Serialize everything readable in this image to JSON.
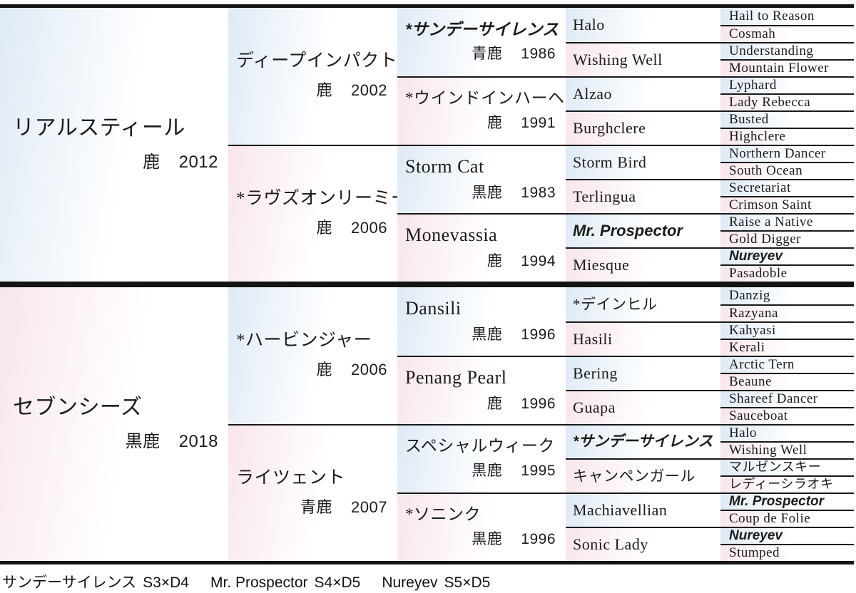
{
  "colors": {
    "sire_tint": "#dfeaf6",
    "dam_tint": "#f8e6ed",
    "rule_line": "#1a1a1a",
    "border": "#141414"
  },
  "pedigree": {
    "gen1": [
      {
        "name": "リアルスティール",
        "coat": "鹿",
        "year": "2012",
        "sex": "male",
        "script": "ja"
      },
      {
        "name": "セブンシーズ",
        "coat": "黒鹿",
        "year": "2018",
        "sex": "female",
        "script": "ja"
      }
    ],
    "gen2": [
      {
        "name": "ディープインパクト",
        "coat": "鹿",
        "year": "2002",
        "sex": "male",
        "script": "ja"
      },
      {
        "name": "*ラヴズオンリーミー",
        "coat": "鹿",
        "year": "2006",
        "sex": "female",
        "script": "ja"
      },
      {
        "name": "*ハービンジャー",
        "coat": "鹿",
        "year": "2006",
        "sex": "male",
        "script": "ja"
      },
      {
        "name": "ライツェント",
        "coat": "青鹿",
        "year": "2007",
        "sex": "female",
        "script": "ja"
      }
    ],
    "gen3": [
      {
        "name": "*サンデーサイレンス",
        "coat": "青鹿",
        "year": "1986",
        "sex": "male",
        "script": "ja",
        "emph": true
      },
      {
        "name": "*ウインドインハーヘア",
        "coat": "鹿",
        "year": "1991",
        "sex": "female",
        "script": "ja"
      },
      {
        "name": "Storm Cat",
        "coat": "黒鹿",
        "year": "1983",
        "sex": "male",
        "script": "en"
      },
      {
        "name": "Monevassia",
        "coat": "鹿",
        "year": "1994",
        "sex": "female",
        "script": "en"
      },
      {
        "name": "Dansili",
        "coat": "黒鹿",
        "year": "1996",
        "sex": "male",
        "script": "en"
      },
      {
        "name": "Penang Pearl",
        "coat": "鹿",
        "year": "1996",
        "sex": "female",
        "script": "en"
      },
      {
        "name": "スペシャルウィーク",
        "coat": "黒鹿",
        "year": "1995",
        "sex": "male",
        "script": "ja"
      },
      {
        "name": "*ソニンク",
        "coat": "黒鹿",
        "year": "1996",
        "sex": "female",
        "script": "ja"
      }
    ],
    "gen4": [
      {
        "name": "Halo",
        "sex": "male",
        "script": "en"
      },
      {
        "name": "Wishing Well",
        "sex": "female",
        "script": "en"
      },
      {
        "name": "Alzao",
        "sex": "male",
        "script": "en"
      },
      {
        "name": "Burghclere",
        "sex": "female",
        "script": "en"
      },
      {
        "name": "Storm Bird",
        "sex": "male",
        "script": "en"
      },
      {
        "name": "Terlingua",
        "sex": "female",
        "script": "en"
      },
      {
        "name": "Mr. Prospector",
        "sex": "male",
        "script": "en",
        "emph": true
      },
      {
        "name": "Miesque",
        "sex": "female",
        "script": "en"
      },
      {
        "name": "*デインヒル",
        "sex": "male",
        "script": "ja"
      },
      {
        "name": "Hasili",
        "sex": "female",
        "script": "en"
      },
      {
        "name": "Bering",
        "sex": "male",
        "script": "en"
      },
      {
        "name": "Guapa",
        "sex": "female",
        "script": "en"
      },
      {
        "name": "*サンデーサイレンス",
        "sex": "male",
        "script": "ja",
        "emph": true
      },
      {
        "name": "キャンペンガール",
        "sex": "female",
        "script": "ja"
      },
      {
        "name": "Machiavellian",
        "sex": "male",
        "script": "en"
      },
      {
        "name": "Sonic Lady",
        "sex": "female",
        "script": "en"
      }
    ],
    "gen5": [
      {
        "name": "Hail to Reason",
        "sex": "male",
        "script": "en"
      },
      {
        "name": "Cosmah",
        "sex": "female",
        "script": "en"
      },
      {
        "name": "Understanding",
        "sex": "male",
        "script": "en"
      },
      {
        "name": "Mountain Flower",
        "sex": "female",
        "script": "en"
      },
      {
        "name": "Lyphard",
        "sex": "male",
        "script": "en"
      },
      {
        "name": "Lady Rebecca",
        "sex": "female",
        "script": "en"
      },
      {
        "name": "Busted",
        "sex": "male",
        "script": "en"
      },
      {
        "name": "Highclere",
        "sex": "female",
        "script": "en"
      },
      {
        "name": "Northern Dancer",
        "sex": "male",
        "script": "en"
      },
      {
        "name": "South Ocean",
        "sex": "female",
        "script": "en"
      },
      {
        "name": "Secretariat",
        "sex": "male",
        "script": "en"
      },
      {
        "name": "Crimson Saint",
        "sex": "female",
        "script": "en"
      },
      {
        "name": "Raise a Native",
        "sex": "male",
        "script": "en"
      },
      {
        "name": "Gold Digger",
        "sex": "female",
        "script": "en"
      },
      {
        "name": "Nureyev",
        "sex": "male",
        "script": "en",
        "emph": true
      },
      {
        "name": "Pasadoble",
        "sex": "female",
        "script": "en"
      },
      {
        "name": "Danzig",
        "sex": "male",
        "script": "en"
      },
      {
        "name": "Razyana",
        "sex": "female",
        "script": "en"
      },
      {
        "name": "Kahyasi",
        "sex": "male",
        "script": "en"
      },
      {
        "name": "Kerali",
        "sex": "female",
        "script": "en"
      },
      {
        "name": "Arctic Tern",
        "sex": "male",
        "script": "en"
      },
      {
        "name": "Beaune",
        "sex": "female",
        "script": "en"
      },
      {
        "name": "Shareef Dancer",
        "sex": "male",
        "script": "en"
      },
      {
        "name": "Sauceboat",
        "sex": "female",
        "script": "en"
      },
      {
        "name": "Halo",
        "sex": "male",
        "script": "en"
      },
      {
        "name": "Wishing Well",
        "sex": "female",
        "script": "en"
      },
      {
        "name": "マルゼンスキー",
        "sex": "male",
        "script": "ja"
      },
      {
        "name": "レディーシラオキ",
        "sex": "female",
        "script": "ja"
      },
      {
        "name": "Mr. Prospector",
        "sex": "male",
        "script": "en",
        "emph": true
      },
      {
        "name": "Coup de Folie",
        "sex": "female",
        "script": "en"
      },
      {
        "name": "Nureyev",
        "sex": "male",
        "script": "en",
        "emph": true
      },
      {
        "name": "Stumped",
        "sex": "female",
        "script": "en"
      }
    ]
  },
  "caption": {
    "segments": [
      {
        "name": "サンデーサイレンス",
        "cross": "S3×D4"
      },
      {
        "name": "Mr. Prospector",
        "cross": "S4×D5"
      },
      {
        "name": "Nureyev",
        "cross": "S5×D5"
      }
    ]
  }
}
